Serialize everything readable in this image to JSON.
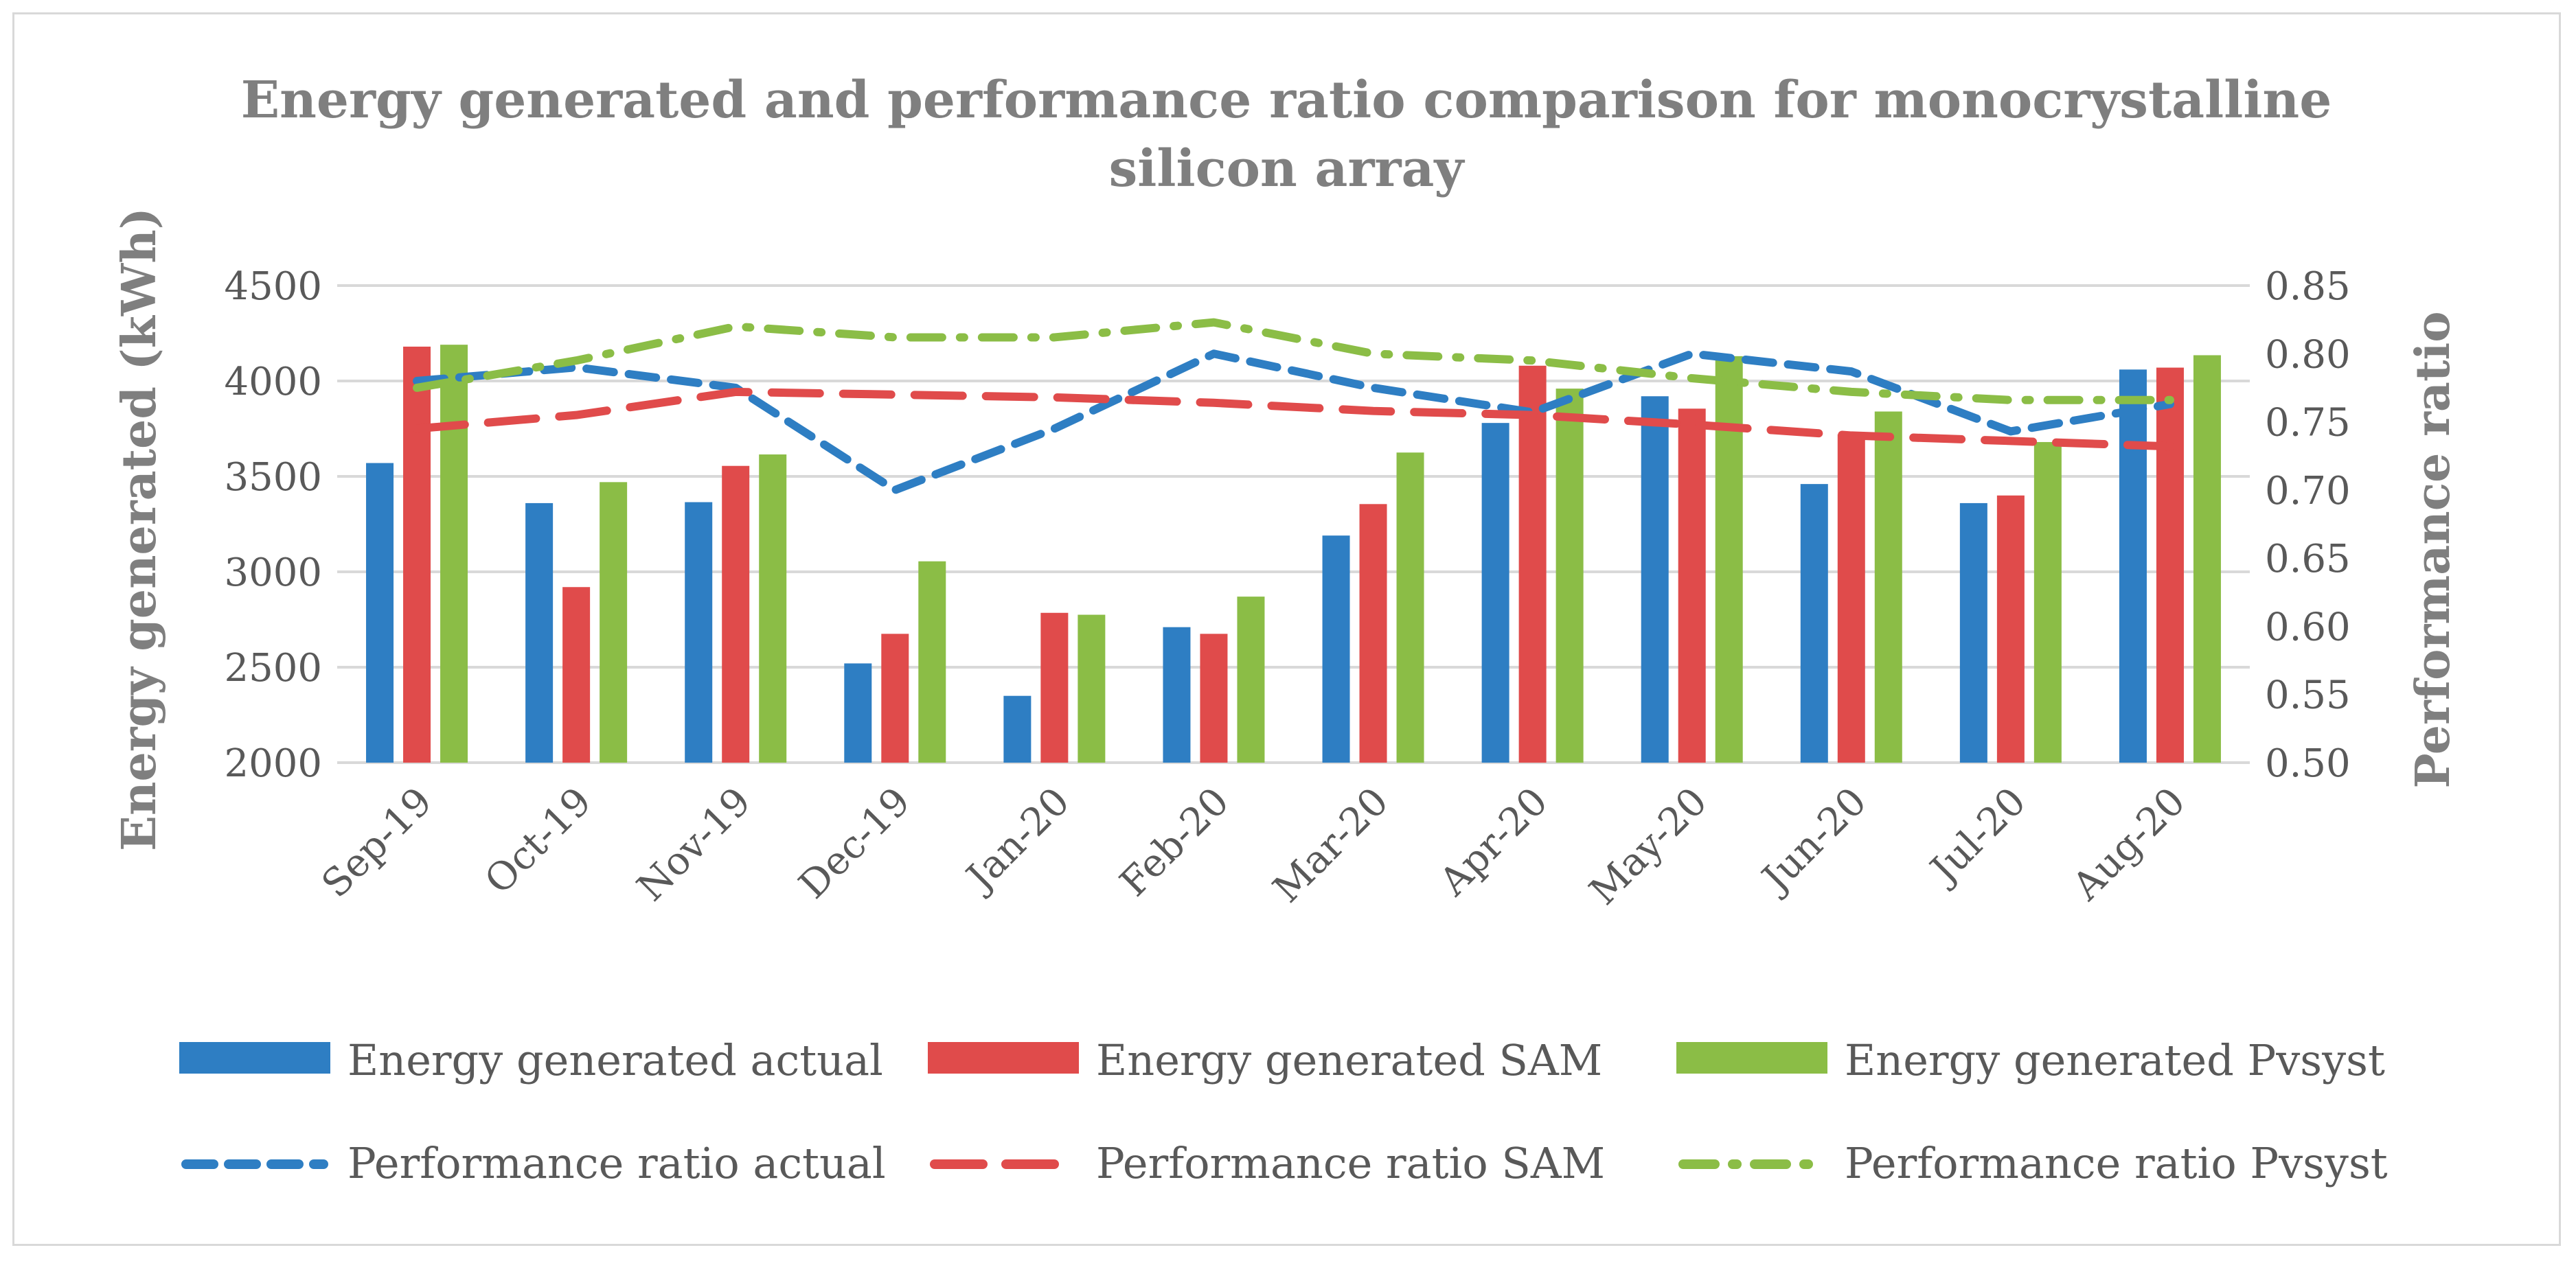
{
  "chart_data": {
    "type": "bar",
    "title_lines": [
      "Energy generated and performance ratio comparison for monocrystalline",
      "silicon array"
    ],
    "categories": [
      "Sep-19",
      "Oct-19",
      "Nov-19",
      "Dec-19",
      "Jan-20",
      "Feb-20",
      "Mar-20",
      "Apr-20",
      "May-20",
      "Jun-20",
      "Jul-20",
      "Aug-20"
    ],
    "ylabel": "Energy generated (kWh)",
    "y2label": "Performance ratio",
    "ylim": [
      2000,
      4500
    ],
    "y2lim": [
      0.5,
      0.85
    ],
    "yticks": [
      "2000",
      "2500",
      "3000",
      "3500",
      "4000",
      "4500"
    ],
    "y2ticks": [
      "0.50",
      "0.55",
      "0.60",
      "0.65",
      "0.70",
      "0.75",
      "0.80",
      "0.85"
    ],
    "grid": true,
    "legend_position": "bottom",
    "bar_series": [
      {
        "name": "Energy generated actual",
        "color": "#2e7ec3",
        "values": [
          3570,
          3360,
          3365,
          2520,
          2350,
          2710,
          3190,
          3780,
          3920,
          3460,
          3360,
          4060
        ]
      },
      {
        "name": "Energy generated SAM",
        "color": "#e04b4b",
        "values": [
          4180,
          2920,
          3555,
          2675,
          2785,
          2675,
          3355,
          4080,
          3855,
          3720,
          3400,
          4070
        ]
      },
      {
        "name": "Energy generated Pvsyst",
        "color": "#8bbd46",
        "values": [
          4190,
          3470,
          3615,
          3055,
          2775,
          2870,
          3625,
          3960,
          4130,
          3840,
          3680,
          4135
        ]
      }
    ],
    "line_series": [
      {
        "name": "Performance ratio actual",
        "color": "#2e7ec3",
        "dash": "dash",
        "values": [
          0.78,
          0.79,
          0.775,
          0.7,
          0.745,
          0.8,
          0.775,
          0.757,
          0.8,
          0.787,
          0.743,
          0.763
        ]
      },
      {
        "name": "Performance ratio SAM",
        "color": "#e04b4b",
        "dash": "longdash",
        "values": [
          0.745,
          0.755,
          0.772,
          0.77,
          0.768,
          0.764,
          0.758,
          0.755,
          0.748,
          0.74,
          0.736,
          0.732
        ]
      },
      {
        "name": "Performance ratio Pvsyst",
        "color": "#8bbd46",
        "dash": "dashdot",
        "values": [
          0.775,
          0.795,
          0.82,
          0.812,
          0.812,
          0.823,
          0.8,
          0.795,
          0.782,
          0.772,
          0.766,
          0.766
        ]
      }
    ]
  }
}
